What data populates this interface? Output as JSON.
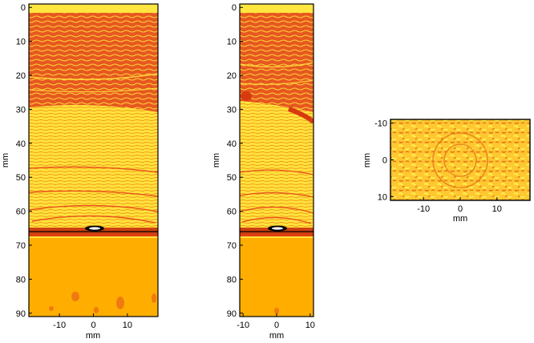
{
  "panels": [
    {
      "id": "left",
      "xlabel": "mm",
      "ylabel": "mm",
      "xlim": [
        -19,
        19
      ],
      "ylim": [
        -1,
        91
      ],
      "xticks": [
        -10,
        0,
        10
      ],
      "yticks": [
        0,
        10,
        20,
        30,
        40,
        50,
        60,
        70,
        80,
        90
      ]
    },
    {
      "id": "middle",
      "xlabel": "mm",
      "ylabel": "mm",
      "xlim": [
        -11,
        11
      ],
      "ylim": [
        -1,
        91
      ],
      "xticks": [
        -10,
        0,
        10
      ],
      "yticks": [
        0,
        10,
        20,
        30,
        40,
        50,
        60,
        70,
        80,
        90
      ]
    },
    {
      "id": "right",
      "xlabel": "mm",
      "ylabel": "mm",
      "xlim": [
        -19,
        19
      ],
      "ylim": [
        -11,
        11
      ],
      "xticks": [
        -10,
        0,
        10
      ],
      "yticks": [
        -10,
        0,
        10
      ]
    }
  ],
  "colors": {
    "background_upper": "#e85a20",
    "stripe_yellow": "#ffe640",
    "band_light": "#ffc830",
    "lower_region": "#ffae00",
    "lower_spots": "#f07a10",
    "focus_dark": "#000000",
    "focus_white": "#ffffff",
    "frame": "#000000"
  }
}
